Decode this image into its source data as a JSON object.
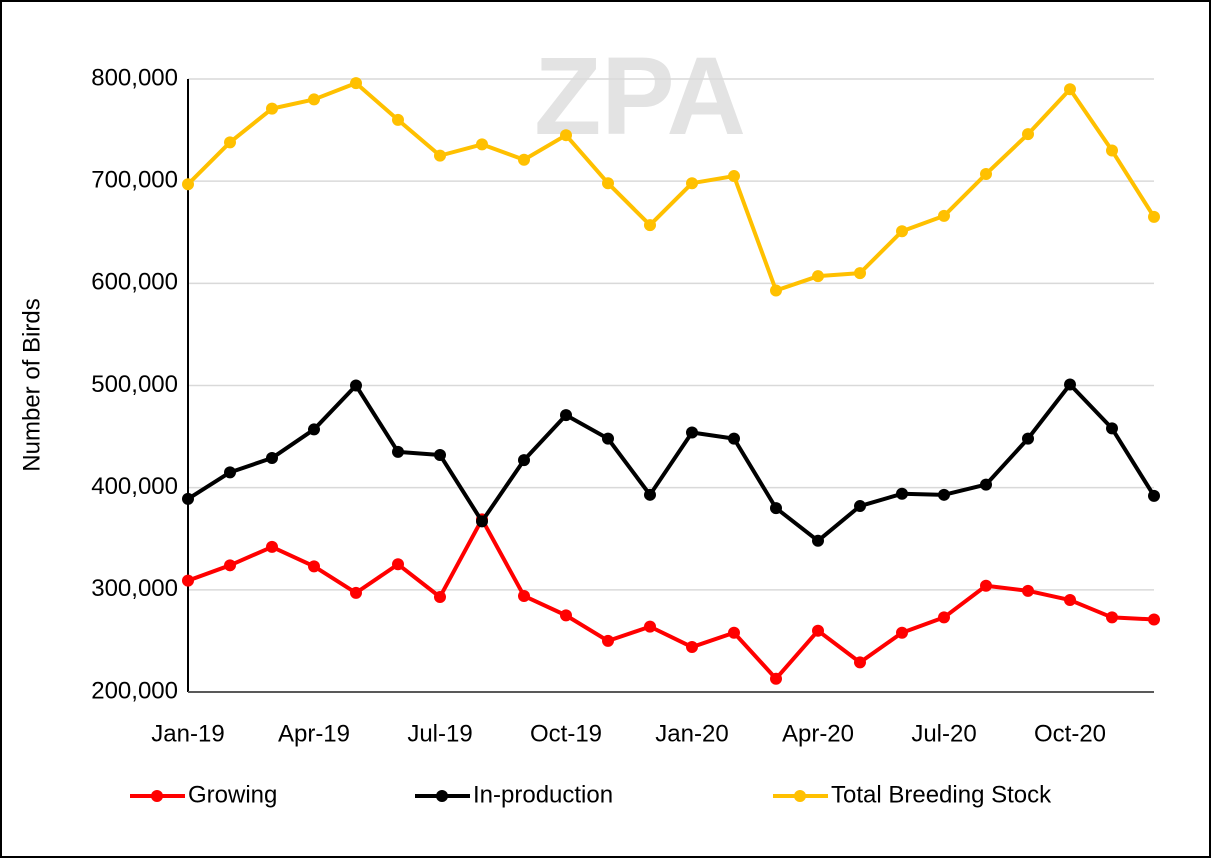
{
  "chart_data": {
    "type": "line",
    "watermark": "ZPA",
    "y_label": "Number of Birds",
    "categories": [
      "Jan-19",
      null,
      null,
      "Apr-19",
      null,
      null,
      "Jul-19",
      null,
      null,
      "Oct-19",
      null,
      null,
      "Jan-20",
      null,
      null,
      "Apr-20",
      null,
      null,
      "Jul-20",
      null,
      null,
      "Oct-20",
      null,
      null
    ],
    "series": [
      {
        "name": "Growing",
        "color": "#ff0000",
        "values": [
          309000,
          324000,
          342000,
          323000,
          297000,
          325000,
          293000,
          369000,
          294000,
          275000,
          250000,
          264000,
          244000,
          258000,
          213000,
          260000,
          229000,
          258000,
          273000,
          304000,
          299000,
          290000,
          273000,
          271000
        ]
      },
      {
        "name": "In-production",
        "color": "#000000",
        "values": [
          389000,
          415000,
          429000,
          457000,
          500000,
          435000,
          432000,
          367000,
          427000,
          471000,
          448000,
          393000,
          454000,
          448000,
          380000,
          348000,
          382000,
          394000,
          393000,
          403000,
          448000,
          501000,
          458000,
          392000
        ]
      },
      {
        "name": "Total Breeding Stock",
        "color": "#ffc000",
        "values": [
          697000,
          738000,
          771000,
          780000,
          796000,
          760000,
          725000,
          736000,
          721000,
          745000,
          698000,
          657000,
          698000,
          705000,
          593000,
          607000,
          610000,
          651000,
          666000,
          707000,
          746000,
          790000,
          730000,
          665000
        ]
      }
    ],
    "ylim": [
      200000,
      800000
    ],
    "yticks": [
      {
        "value": 200000,
        "label": "200,000"
      },
      {
        "value": 300000,
        "label": "300,000"
      },
      {
        "value": 400000,
        "label": "400,000"
      },
      {
        "value": 500000,
        "label": "500,000"
      },
      {
        "value": 600000,
        "label": "600,000"
      },
      {
        "value": 700000,
        "label": "700,000"
      },
      {
        "value": 800000,
        "label": "800,000"
      }
    ],
    "grid": true,
    "legend": "bottom"
  }
}
